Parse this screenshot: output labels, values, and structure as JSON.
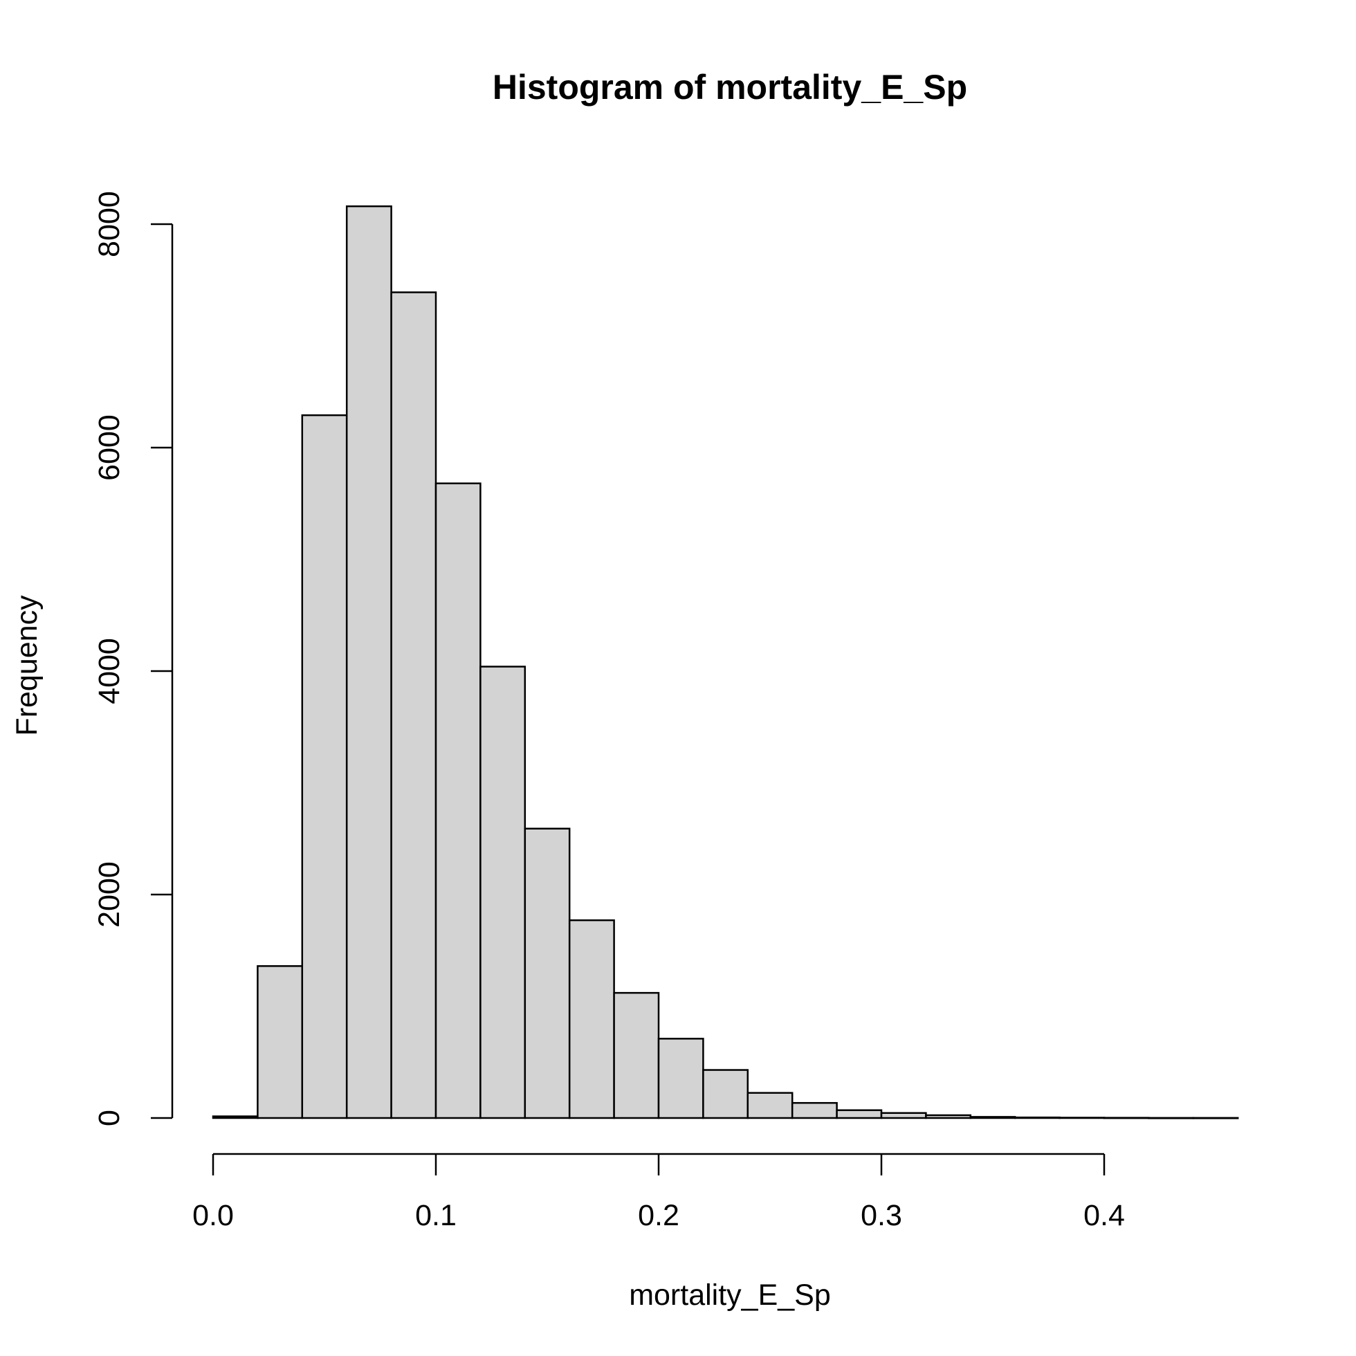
{
  "colors": {
    "bar_fill": "#d3d3d3",
    "bar_stroke": "#000000",
    "background": "#ffffff"
  },
  "chart_data": {
    "type": "bar",
    "subtype": "histogram",
    "title": "Histogram of mortality_E_Sp",
    "xlabel": "mortality_E_Sp",
    "ylabel": "Frequency",
    "bin_width": 0.02,
    "bins": [
      {
        "x0": 0.0,
        "x1": 0.02,
        "count": 15
      },
      {
        "x0": 0.02,
        "x1": 0.04,
        "count": 1360
      },
      {
        "x0": 0.04,
        "x1": 0.06,
        "count": 6290
      },
      {
        "x0": 0.06,
        "x1": 0.08,
        "count": 8160
      },
      {
        "x0": 0.08,
        "x1": 0.1,
        "count": 7390
      },
      {
        "x0": 0.1,
        "x1": 0.12,
        "count": 5680
      },
      {
        "x0": 0.12,
        "x1": 0.14,
        "count": 4040
      },
      {
        "x0": 0.14,
        "x1": 0.16,
        "count": 2590
      },
      {
        "x0": 0.16,
        "x1": 0.18,
        "count": 1770
      },
      {
        "x0": 0.18,
        "x1": 0.2,
        "count": 1120
      },
      {
        "x0": 0.2,
        "x1": 0.22,
        "count": 710
      },
      {
        "x0": 0.22,
        "x1": 0.24,
        "count": 430
      },
      {
        "x0": 0.24,
        "x1": 0.26,
        "count": 225
      },
      {
        "x0": 0.26,
        "x1": 0.28,
        "count": 135
      },
      {
        "x0": 0.28,
        "x1": 0.3,
        "count": 70
      },
      {
        "x0": 0.3,
        "x1": 0.32,
        "count": 45
      },
      {
        "x0": 0.32,
        "x1": 0.34,
        "count": 25
      },
      {
        "x0": 0.34,
        "x1": 0.36,
        "count": 10
      },
      {
        "x0": 0.36,
        "x1": 0.38,
        "count": 5
      },
      {
        "x0": 0.38,
        "x1": 0.4,
        "count": 3
      },
      {
        "x0": 0.4,
        "x1": 0.42,
        "count": 2
      },
      {
        "x0": 0.42,
        "x1": 0.44,
        "count": 1
      },
      {
        "x0": 0.44,
        "x1": 0.46,
        "count": 1
      }
    ],
    "xticks": [
      {
        "value": 0.0,
        "label": "0.0"
      },
      {
        "value": 0.1,
        "label": "0.1"
      },
      {
        "value": 0.2,
        "label": "0.2"
      },
      {
        "value": 0.3,
        "label": "0.3"
      },
      {
        "value": 0.4,
        "label": "0.4"
      }
    ],
    "yticks": [
      {
        "value": 0,
        "label": "0"
      },
      {
        "value": 2000,
        "label": "2000"
      },
      {
        "value": 4000,
        "label": "4000"
      },
      {
        "value": 6000,
        "label": "6000"
      },
      {
        "value": 8000,
        "label": "8000"
      }
    ],
    "xlim": [
      0.0,
      0.46
    ],
    "ylim": [
      0,
      8160
    ],
    "grid": false,
    "legend": "none"
  }
}
